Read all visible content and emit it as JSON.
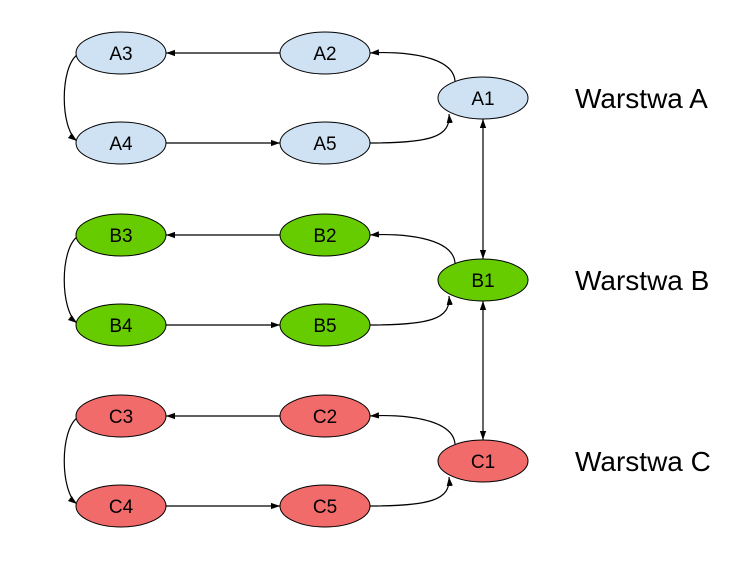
{
  "diagram": {
    "layers": [
      {
        "id": "A",
        "label": "Warstwa A",
        "color": "#cfe2f3",
        "nodes": {
          "n1": "A1",
          "n2": "A2",
          "n3": "A3",
          "n4": "A4",
          "n5": "A5"
        }
      },
      {
        "id": "B",
        "label": "Warstwa B",
        "color": "#66cc00",
        "nodes": {
          "n1": "B1",
          "n2": "B2",
          "n3": "B3",
          "n4": "B4",
          "n5": "B5"
        }
      },
      {
        "id": "C",
        "label": "Warstwa C",
        "color": "#f26b6b",
        "nodes": {
          "n1": "C1",
          "n2": "C2",
          "n3": "C3",
          "n4": "C4",
          "n5": "C5"
        }
      }
    ],
    "intra_layer_edges": [
      [
        "n1",
        "n2"
      ],
      [
        "n2",
        "n3"
      ],
      [
        "n3",
        "n4"
      ],
      [
        "n4",
        "n5"
      ],
      [
        "n5",
        "n1"
      ]
    ],
    "inter_layer_edges": [
      {
        "from": "A1",
        "to": "B1",
        "bidirectional": true
      },
      {
        "from": "B1",
        "to": "C1",
        "bidirectional": true
      }
    ]
  }
}
